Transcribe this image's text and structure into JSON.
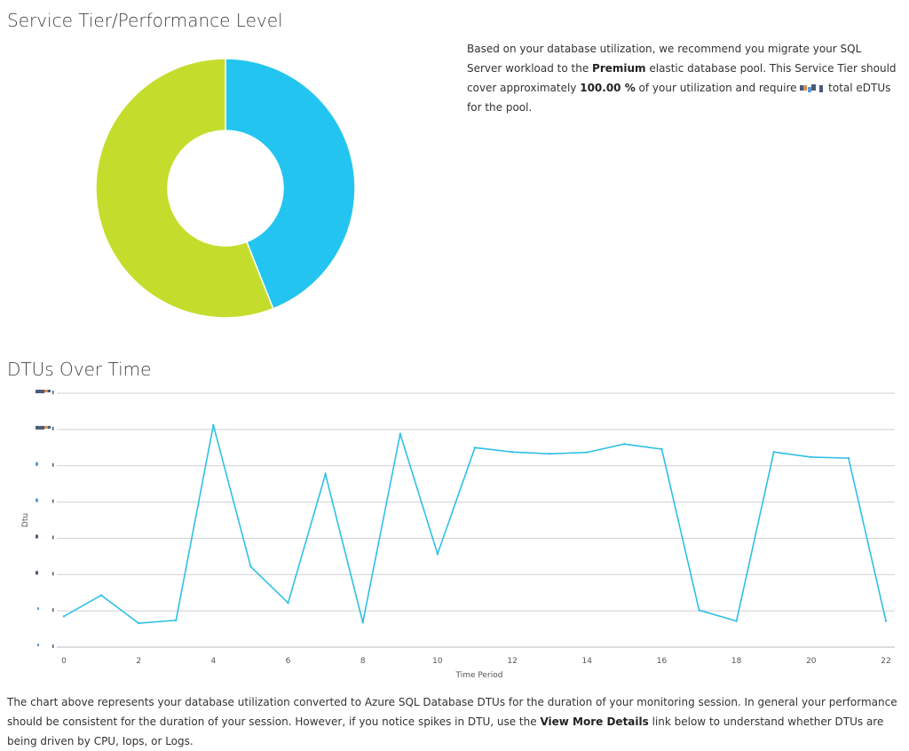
{
  "page": {
    "service_title": "Service Tier/Performance Level",
    "dtu_title": "DTUs Over Time"
  },
  "recommendation": {
    "part1": "Based on your database utilization, we recommend you migrate your SQL Server workload to the ",
    "tier": "Premium",
    "part2": " elastic database pool. This Service Tier should cover approximately ",
    "percent": "100.00 %",
    "part3": " of your utilization and require ",
    "part4": " total eDTUs for the pool."
  },
  "footer": {
    "part1": "The chart above represents your database utilization converted to Azure SQL Database DTUs for the duration of your monitoring session. In general your performance should be consistent for the duration of your session. However, if you notice spikes in DTU, use the ",
    "link": "View More Details",
    "part2": " link below to understand whether DTUs are being driven by CPU, Iops, or Logs."
  },
  "colors": {
    "donut_blue": "#23c5f0",
    "donut_green": "#c4dd2c",
    "line": "#2fc0e6",
    "grid": "#d0d0d0",
    "redact_dark": "#4a5a78",
    "redact_orange": "#d9904a",
    "redact_blue": "#5b9bd5"
  },
  "chart_data": [
    {
      "type": "pie",
      "donut": true,
      "slices": [
        {
          "value": 44,
          "color": "#23c5f0"
        },
        {
          "value": 56,
          "color": "#c4dd2c"
        }
      ]
    },
    {
      "type": "line",
      "title": "DTUs Over Time",
      "xlabel": "Time Period",
      "ylabel": "Dtu",
      "x_ticks": [
        0,
        2,
        4,
        6,
        8,
        10,
        12,
        14,
        16,
        18,
        20,
        22
      ],
      "xlim": [
        0,
        22
      ],
      "grid": true,
      "y_gridlines": 7,
      "y_tick_labels_redacted": true,
      "ylim": [
        0,
        7
      ],
      "series": [
        {
          "x": [
            0,
            1,
            2,
            3,
            4,
            5,
            6,
            7,
            8,
            9,
            10,
            11,
            12,
            13,
            14,
            15,
            16,
            17,
            18,
            19,
            20,
            21,
            22
          ],
          "y": [
            0.85,
            1.43,
            0.66,
            0.74,
            6.12,
            2.22,
            1.22,
            4.77,
            0.68,
            5.88,
            2.57,
            5.5,
            5.38,
            5.33,
            5.37,
            5.6,
            5.46,
            1.02,
            0.72,
            5.38,
            5.24,
            5.21,
            0.72
          ]
        }
      ]
    }
  ]
}
